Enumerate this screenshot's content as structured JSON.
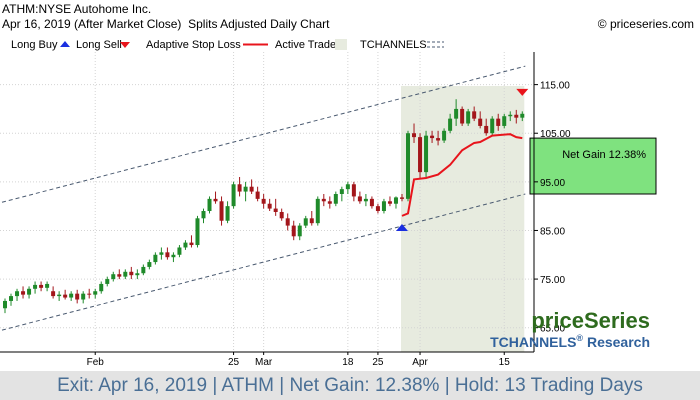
{
  "header": {
    "title": "ATHM:NYSE Autohome Inc.",
    "subtitle_date": "Apr 16, 2019 (After Market Close)",
    "subtitle_desc": "Splits Adjusted Daily Chart",
    "copyright": "© priceseries.com"
  },
  "legend": {
    "long_buy": "Long Buy",
    "long_sell": "Long Sell",
    "stop_loss": "Adaptive Stop Loss",
    "active_trade": "Active Trade",
    "tchannels": "TCHANNELS"
  },
  "annotation": {
    "net_gain": "Net Gain 12.38%"
  },
  "brand": {
    "name": "priceSeries",
    "research": "TCHANNELS",
    "research_suffix": "Research",
    "reg": "®"
  },
  "footer": {
    "exit": "Exit: Apr 16, 2019",
    "ticker": "ATHM",
    "net_gain": "Net Gain: 12.38%",
    "hold": "Hold: 13 Trading Days",
    "sep": " | "
  },
  "colors": {
    "up": "#1f8a2a",
    "down": "#a3161b",
    "stop": "#e8141c",
    "active_bg": "#e7ebdf",
    "gain_box": "#7fe27f",
    "channel": "#4a5a70",
    "buy_arrow": "#1a2fe0",
    "sell_arrow": "#e8141c",
    "footer_text": "#4a6f95",
    "brand_green": "#2e6b1e",
    "brand_blue": "#30619c"
  },
  "chart_data": {
    "type": "candlestick",
    "y_axis": {
      "min": 60,
      "max": 125,
      "ticks": [
        65,
        75,
        85,
        95,
        105,
        115
      ],
      "tick_labels": [
        "65.00",
        "75.00",
        "85.00",
        "95.00",
        "105.00",
        "115.00"
      ]
    },
    "x_axis": {
      "count": 87,
      "ticks": [
        {
          "index": 15,
          "label": "Feb"
        },
        {
          "index": 38,
          "label": "25"
        },
        {
          "index": 43,
          "label": "Mar"
        },
        {
          "index": 57,
          "label": "18"
        },
        {
          "index": 62,
          "label": "25"
        },
        {
          "index": 69,
          "label": "Apr"
        },
        {
          "index": 83,
          "label": "15"
        }
      ]
    },
    "candles": [
      [
        69.0,
        71.0,
        68.0,
        70.5
      ],
      [
        70.5,
        72.0,
        69.5,
        71.5
      ],
      [
        71.5,
        73.0,
        70.5,
        72.5
      ],
      [
        72.5,
        73.5,
        71.0,
        71.8
      ],
      [
        71.8,
        73.5,
        71.0,
        73.0
      ],
      [
        73.0,
        74.5,
        72.0,
        73.8
      ],
      [
        73.8,
        74.5,
        72.5,
        73.2
      ],
      [
        73.2,
        74.5,
        72.5,
        74.0
      ],
      [
        72.5,
        73.5,
        71.0,
        71.5
      ],
      [
        71.5,
        72.5,
        70.5,
        71.8
      ],
      [
        71.8,
        72.8,
        70.8,
        71.2
      ],
      [
        71.2,
        72.5,
        70.5,
        72.0
      ],
      [
        72.0,
        72.8,
        70.0,
        70.8
      ],
      [
        70.8,
        72.5,
        70.0,
        72.0
      ],
      [
        72.0,
        73.0,
        71.0,
        71.8
      ],
      [
        71.8,
        73.0,
        71.0,
        72.5
      ],
      [
        72.5,
        74.5,
        72.0,
        74.0
      ],
      [
        74.0,
        75.5,
        73.5,
        75.0
      ],
      [
        75.0,
        76.5,
        74.5,
        76.0
      ],
      [
        76.0,
        77.0,
        75.0,
        75.5
      ],
      [
        75.5,
        77.0,
        75.0,
        76.5
      ],
      [
        76.5,
        77.5,
        75.0,
        75.8
      ],
      [
        75.8,
        77.0,
        75.0,
        76.2
      ],
      [
        76.2,
        78.0,
        75.8,
        77.5
      ],
      [
        77.5,
        79.0,
        77.0,
        78.5
      ],
      [
        78.5,
        80.5,
        78.0,
        80.0
      ],
      [
        80.0,
        81.5,
        79.0,
        80.5
      ],
      [
        80.5,
        81.5,
        79.0,
        79.5
      ],
      [
        79.5,
        80.5,
        78.5,
        80.0
      ],
      [
        80.0,
        82.0,
        79.5,
        81.5
      ],
      [
        81.5,
        83.0,
        81.0,
        82.5
      ],
      [
        82.5,
        84.0,
        81.5,
        82.0
      ],
      [
        82.0,
        88.0,
        81.5,
        87.5
      ],
      [
        87.5,
        89.5,
        86.5,
        89.0
      ],
      [
        89.0,
        92.0,
        88.5,
        91.5
      ],
      [
        91.5,
        93.0,
        90.5,
        91.0
      ],
      [
        91.0,
        92.0,
        86.0,
        87.0
      ],
      [
        87.0,
        91.0,
        86.5,
        90.0
      ],
      [
        90.0,
        95.0,
        89.5,
        94.5
      ],
      [
        94.5,
        96.0,
        92.0,
        93.0
      ],
      [
        93.0,
        95.0,
        91.0,
        94.0
      ],
      [
        94.0,
        95.5,
        92.5,
        93.0
      ],
      [
        93.0,
        94.0,
        91.0,
        91.5
      ],
      [
        91.5,
        92.5,
        89.5,
        90.5
      ],
      [
        90.5,
        91.5,
        89.0,
        89.5
      ],
      [
        89.5,
        91.5,
        88.0,
        88.8
      ],
      [
        88.8,
        89.5,
        87.0,
        87.5
      ],
      [
        87.5,
        88.5,
        85.0,
        86.0
      ],
      [
        86.0,
        87.0,
        83.0,
        83.8
      ],
      [
        83.8,
        86.5,
        83.0,
        86.0
      ],
      [
        86.0,
        88.0,
        85.5,
        87.5
      ],
      [
        87.5,
        89.0,
        86.0,
        86.5
      ],
      [
        86.5,
        92.0,
        86.0,
        91.5
      ],
      [
        91.5,
        92.5,
        90.0,
        91.0
      ],
      [
        91.0,
        92.0,
        89.5,
        90.5
      ],
      [
        90.5,
        93.0,
        90.0,
        92.5
      ],
      [
        92.5,
        94.0,
        91.0,
        93.5
      ],
      [
        93.5,
        95.0,
        92.5,
        94.5
      ],
      [
        94.5,
        95.0,
        91.0,
        92.0
      ],
      [
        92.0,
        93.0,
        90.5,
        91.0
      ],
      [
        91.0,
        92.5,
        90.0,
        91.5
      ],
      [
        91.5,
        92.0,
        89.5,
        90.0
      ],
      [
        90.0,
        90.5,
        88.5,
        89.0
      ],
      [
        89.0,
        91.5,
        88.5,
        91.0
      ],
      [
        91.0,
        92.0,
        90.0,
        90.5
      ],
      [
        90.5,
        92.0,
        89.5,
        91.8
      ],
      [
        91.8,
        92.5,
        91.0,
        91.5
      ],
      [
        91.5,
        105.5,
        91.0,
        105.0
      ],
      [
        105.0,
        107.0,
        103.0,
        104.2
      ],
      [
        104.2,
        105.0,
        95.5,
        97.0
      ],
      [
        97.0,
        105.5,
        96.0,
        104.5
      ],
      [
        104.5,
        105.5,
        103.0,
        104.0
      ],
      [
        104.0,
        105.5,
        102.5,
        103.5
      ],
      [
        103.5,
        106.0,
        103.0,
        105.5
      ],
      [
        105.5,
        109.0,
        105.0,
        108.0
      ],
      [
        108.0,
        112.0,
        106.5,
        110.0
      ],
      [
        110.0,
        110.5,
        106.5,
        107.0
      ],
      [
        107.0,
        110.0,
        106.5,
        109.5
      ],
      [
        109.5,
        110.5,
        107.5,
        108.0
      ],
      [
        108.0,
        109.5,
        106.0,
        106.5
      ],
      [
        106.5,
        108.0,
        104.5,
        105.0
      ],
      [
        105.0,
        108.5,
        104.5,
        108.0
      ],
      [
        108.0,
        109.0,
        105.5,
        106.5
      ],
      [
        106.5,
        109.0,
        106.0,
        108.5
      ],
      [
        108.5,
        109.5,
        107.5,
        108.8
      ],
      [
        108.8,
        109.8,
        107.0,
        108.2
      ],
      [
        108.2,
        109.5,
        107.5,
        109.0
      ]
    ],
    "stop_loss": [
      {
        "i": 66,
        "v": 88.0
      },
      {
        "i": 67,
        "v": 88.5
      },
      {
        "i": 68,
        "v": 95.5
      },
      {
        "i": 70,
        "v": 95.8
      },
      {
        "i": 72,
        "v": 96.5
      },
      {
        "i": 74,
        "v": 98.5
      },
      {
        "i": 76,
        "v": 101.5
      },
      {
        "i": 78,
        "v": 103.0
      },
      {
        "i": 79,
        "v": 103.2
      },
      {
        "i": 81,
        "v": 104.5
      },
      {
        "i": 84,
        "v": 104.8
      },
      {
        "i": 85,
        "v": 104.2
      },
      {
        "i": 86,
        "v": 104.0
      }
    ],
    "active_range": [
      66,
      86
    ],
    "buy": {
      "index": 66,
      "price": 85.5
    },
    "sell": {
      "index": 86,
      "price": 113.5
    },
    "channel_upper": {
      "start": {
        "i": -0.5,
        "v": 90.8
      },
      "end": {
        "i": 86.5,
        "v": 118.8
      }
    },
    "channel_lower": {
      "start": {
        "i": -0.5,
        "v": 64.5
      },
      "end": {
        "i": 86.5,
        "v": 92.5
      }
    },
    "gain_box": {
      "top": 104.0,
      "bottom": 92.5
    }
  }
}
